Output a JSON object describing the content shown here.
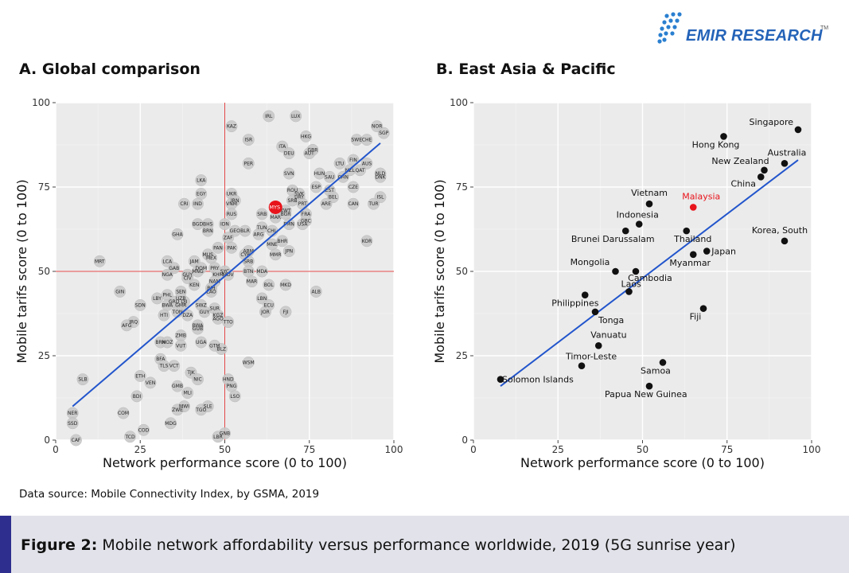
{
  "brand": {
    "name": "EMIR RESEARCH",
    "tm": "TM",
    "color": "#2463b8"
  },
  "panels": [
    {
      "title": "A. Global comparison"
    },
    {
      "title": "B. East Asia & Pacific"
    }
  ],
  "source": "Data source: Mobile Connectivity Index, by GSMA, 2019",
  "caption": {
    "label": "Figure 2:",
    "text": " Mobile network affordability versus performance worldwide, 2019 (5G sunrise year)"
  },
  "colors": {
    "trend": "#2255cc",
    "highlight": "#e8141b",
    "ref_lines": "#e04444",
    "panel_bg": "#ebebeb",
    "gray_point": "#c9c9c9"
  },
  "chart_data": [
    {
      "type": "scatter",
      "title": "A. Global comparison",
      "xlabel": "Network performance score (0 to 100)",
      "ylabel": "Mobile tarifs score (0 to 100)",
      "xlim": [
        0,
        100
      ],
      "ylim": [
        0,
        100
      ],
      "x_ticks": [
        0,
        25,
        50,
        75,
        100
      ],
      "y_ticks": [
        0,
        25,
        50,
        75,
        100
      ],
      "grid": true,
      "reference_lines": {
        "x": 50,
        "y": 50
      },
      "trend_line": [
        [
          5,
          10
        ],
        [
          96,
          88
        ]
      ],
      "highlight": {
        "label": "MYS",
        "x": 65,
        "y": 69
      },
      "points": [
        {
          "label": "LUX",
          "x": 71,
          "y": 96
        },
        {
          "label": "IRL",
          "x": 63,
          "y": 96
        },
        {
          "label": "KAZ",
          "x": 52,
          "y": 93
        },
        {
          "label": "NOR",
          "x": 95,
          "y": 93
        },
        {
          "label": "SGP",
          "x": 97,
          "y": 91
        },
        {
          "label": "HKG",
          "x": 74,
          "y": 90
        },
        {
          "label": "ISR",
          "x": 57,
          "y": 89
        },
        {
          "label": "SWE",
          "x": 89,
          "y": 89
        },
        {
          "label": "CHE",
          "x": 92,
          "y": 89
        },
        {
          "label": "ITA",
          "x": 67,
          "y": 87
        },
        {
          "label": "DEU",
          "x": 69,
          "y": 85
        },
        {
          "label": "GBR",
          "x": 76,
          "y": 86
        },
        {
          "label": "AUT",
          "x": 75,
          "y": 85
        },
        {
          "label": "FIN",
          "x": 88,
          "y": 83
        },
        {
          "label": "PER",
          "x": 57,
          "y": 82
        },
        {
          "label": "LTU",
          "x": 84,
          "y": 82
        },
        {
          "label": "AUS",
          "x": 92,
          "y": 82
        },
        {
          "label": "NZL",
          "x": 87,
          "y": 80
        },
        {
          "label": "QAT",
          "x": 90,
          "y": 80
        },
        {
          "label": "SVN",
          "x": 69,
          "y": 79
        },
        {
          "label": "HUN",
          "x": 78,
          "y": 79
        },
        {
          "label": "SAU",
          "x": 81,
          "y": 78
        },
        {
          "label": "CHN",
          "x": 85,
          "y": 78
        },
        {
          "label": "NLD",
          "x": 96,
          "y": 79
        },
        {
          "label": "DNK",
          "x": 96,
          "y": 78
        },
        {
          "label": "LKA",
          "x": 43,
          "y": 77
        },
        {
          "label": "ESP",
          "x": 77,
          "y": 75
        },
        {
          "label": "CZE",
          "x": 88,
          "y": 75
        },
        {
          "label": "ROU",
          "x": 70,
          "y": 74
        },
        {
          "label": "EST",
          "x": 81,
          "y": 74
        },
        {
          "label": "EGY",
          "x": 43,
          "y": 73
        },
        {
          "label": "UKR",
          "x": 52,
          "y": 73
        },
        {
          "label": "SVK",
          "x": 72,
          "y": 73
        },
        {
          "label": "BEL",
          "x": 82,
          "y": 72
        },
        {
          "label": "ISL",
          "x": 96,
          "y": 72
        },
        {
          "label": "IRN",
          "x": 53,
          "y": 71
        },
        {
          "label": "SRB",
          "x": 70,
          "y": 71
        },
        {
          "label": "URY",
          "x": 72,
          "y": 72
        },
        {
          "label": "CRI",
          "x": 38,
          "y": 70
        },
        {
          "label": "IND",
          "x": 42,
          "y": 70
        },
        {
          "label": "VNM",
          "x": 52,
          "y": 70
        },
        {
          "label": "PRT",
          "x": 73,
          "y": 70
        },
        {
          "label": "ARE",
          "x": 80,
          "y": 70
        },
        {
          "label": "CAN",
          "x": 88,
          "y": 70
        },
        {
          "label": "TUR",
          "x": 94,
          "y": 70
        },
        {
          "label": "MYS",
          "x": 65,
          "y": 69
        },
        {
          "label": "KWT",
          "x": 68,
          "y": 68
        },
        {
          "label": "BGR",
          "x": 68,
          "y": 67
        },
        {
          "label": "RUS",
          "x": 52,
          "y": 67
        },
        {
          "label": "FRA",
          "x": 74,
          "y": 67
        },
        {
          "label": "SRB",
          "x": 61,
          "y": 67
        },
        {
          "label": "MAR",
          "x": 65,
          "y": 66
        },
        {
          "label": "GRC",
          "x": 74,
          "y": 65
        },
        {
          "label": "BGD",
          "x": 42,
          "y": 64
        },
        {
          "label": "BHS",
          "x": 45,
          "y": 64
        },
        {
          "label": "IDN",
          "x": 50,
          "y": 64
        },
        {
          "label": "PMN",
          "x": 69,
          "y": 64
        },
        {
          "label": "USA",
          "x": 73,
          "y": 64
        },
        {
          "label": "BRN",
          "x": 45,
          "y": 62
        },
        {
          "label": "TUN",
          "x": 61,
          "y": 63
        },
        {
          "label": "GEO",
          "x": 53,
          "y": 62
        },
        {
          "label": "BLR",
          "x": 56,
          "y": 62
        },
        {
          "label": "ARG",
          "x": 60,
          "y": 61
        },
        {
          "label": "CHL",
          "x": 64,
          "y": 62
        },
        {
          "label": "GHA",
          "x": 36,
          "y": 61
        },
        {
          "label": "ZAF",
          "x": 51,
          "y": 60
        },
        {
          "label": "BHR",
          "x": 67,
          "y": 59
        },
        {
          "label": "KOR",
          "x": 92,
          "y": 59
        },
        {
          "label": "PAN",
          "x": 48,
          "y": 57
        },
        {
          "label": "PAK",
          "x": 52,
          "y": 57
        },
        {
          "label": "MNE",
          "x": 64,
          "y": 58
        },
        {
          "label": "MUS",
          "x": 45,
          "y": 55
        },
        {
          "label": "ARM",
          "x": 57,
          "y": 56
        },
        {
          "label": "CYP",
          "x": 56,
          "y": 55
        },
        {
          "label": "JPN",
          "x": 69,
          "y": 56
        },
        {
          "label": "MRT",
          "x": 13,
          "y": 53
        },
        {
          "label": "MEX",
          "x": 46,
          "y": 54
        },
        {
          "label": "MMR",
          "x": 65,
          "y": 55
        },
        {
          "label": "LCA",
          "x": 33,
          "y": 53
        },
        {
          "label": "JAM",
          "x": 41,
          "y": 53
        },
        {
          "label": "SRB",
          "x": 57,
          "y": 53
        },
        {
          "label": "GAB",
          "x": 35,
          "y": 51
        },
        {
          "label": "DOM",
          "x": 43,
          "y": 51
        },
        {
          "label": "PRY",
          "x": 47,
          "y": 51
        },
        {
          "label": "MNG",
          "x": 42,
          "y": 50
        },
        {
          "label": "SYC",
          "x": 50,
          "y": 50
        },
        {
          "label": "BTN",
          "x": 57,
          "y": 50
        },
        {
          "label": "MDA",
          "x": 61,
          "y": 50
        },
        {
          "label": "NGA",
          "x": 33,
          "y": 49
        },
        {
          "label": "GUY",
          "x": 39,
          "y": 49
        },
        {
          "label": "KHM",
          "x": 48,
          "y": 49
        },
        {
          "label": "MDV",
          "x": 51,
          "y": 49
        },
        {
          "label": "CIV",
          "x": 39,
          "y": 48
        },
        {
          "label": "NAM",
          "x": 47,
          "y": 47
        },
        {
          "label": "MAR",
          "x": 58,
          "y": 47
        },
        {
          "label": "KEN",
          "x": 41,
          "y": 46
        },
        {
          "label": "BOL",
          "x": 63,
          "y": 46
        },
        {
          "label": "MKD",
          "x": 68,
          "y": 46
        },
        {
          "label": "BIH",
          "x": 46,
          "y": 45
        },
        {
          "label": "GIN",
          "x": 19,
          "y": 44
        },
        {
          "label": "SEN",
          "x": 37,
          "y": 44
        },
        {
          "label": "LAO",
          "x": 46,
          "y": 44
        },
        {
          "label": "ALB",
          "x": 77,
          "y": 44
        },
        {
          "label": "PHL",
          "x": 33,
          "y": 43
        },
        {
          "label": "LBY",
          "x": 30,
          "y": 42
        },
        {
          "label": "UZB",
          "x": 37,
          "y": 42
        },
        {
          "label": "GRD",
          "x": 35,
          "y": 41
        },
        {
          "label": "LBN",
          "x": 61,
          "y": 42
        },
        {
          "label": "SDN",
          "x": 25,
          "y": 40
        },
        {
          "label": "DJI",
          "x": 38,
          "y": 41
        },
        {
          "label": "BWA",
          "x": 33,
          "y": 40
        },
        {
          "label": "SWZ",
          "x": 43,
          "y": 40
        },
        {
          "label": "ECU",
          "x": 63,
          "y": 40
        },
        {
          "label": "GMR",
          "x": 37,
          "y": 40
        },
        {
          "label": "SUR",
          "x": 47,
          "y": 39
        },
        {
          "label": "TON",
          "x": 36,
          "y": 38
        },
        {
          "label": "GUY",
          "x": 44,
          "y": 38
        },
        {
          "label": "JOR",
          "x": 62,
          "y": 38
        },
        {
          "label": "FJI",
          "x": 68,
          "y": 38
        },
        {
          "label": "HTI",
          "x": 32,
          "y": 37
        },
        {
          "label": "DZA",
          "x": 39,
          "y": 37
        },
        {
          "label": "KGZ",
          "x": 48,
          "y": 37
        },
        {
          "label": "IRQ",
          "x": 23,
          "y": 35
        },
        {
          "label": "AGO",
          "x": 48,
          "y": 36
        },
        {
          "label": "TTO",
          "x": 51,
          "y": 35
        },
        {
          "label": "AFG",
          "x": 21,
          "y": 34
        },
        {
          "label": "BWA",
          "x": 42,
          "y": 34
        },
        {
          "label": "GUB",
          "x": 42,
          "y": 33
        },
        {
          "label": "ZMB",
          "x": 37,
          "y": 31
        },
        {
          "label": "UGA",
          "x": 43,
          "y": 29
        },
        {
          "label": "BRN",
          "x": 31,
          "y": 29
        },
        {
          "label": "MOZ",
          "x": 33,
          "y": 29
        },
        {
          "label": "VUT",
          "x": 37,
          "y": 28
        },
        {
          "label": "GTM",
          "x": 47,
          "y": 28
        },
        {
          "label": "BLZ",
          "x": 49,
          "y": 27
        },
        {
          "label": "BFA",
          "x": 31,
          "y": 24
        },
        {
          "label": "WSM",
          "x": 57,
          "y": 23
        },
        {
          "label": "TLS",
          "x": 32,
          "y": 22
        },
        {
          "label": "VCT",
          "x": 35,
          "y": 22
        },
        {
          "label": "ETH",
          "x": 25,
          "y": 19
        },
        {
          "label": "TJK",
          "x": 40,
          "y": 20
        },
        {
          "label": "NIC",
          "x": 42,
          "y": 18
        },
        {
          "label": "SLB",
          "x": 8,
          "y": 18
        },
        {
          "label": "VEN",
          "x": 28,
          "y": 17
        },
        {
          "label": "HND",
          "x": 51,
          "y": 18
        },
        {
          "label": "PNG",
          "x": 52,
          "y": 16
        },
        {
          "label": "GMB",
          "x": 36,
          "y": 16
        },
        {
          "label": "MLI",
          "x": 39,
          "y": 14
        },
        {
          "label": "BDI",
          "x": 24,
          "y": 13
        },
        {
          "label": "LSO",
          "x": 53,
          "y": 13
        },
        {
          "label": "MWI",
          "x": 38,
          "y": 10
        },
        {
          "label": "ZWE",
          "x": 36,
          "y": 9
        },
        {
          "label": "TGO",
          "x": 43,
          "y": 9
        },
        {
          "label": "SLE",
          "x": 45,
          "y": 10
        },
        {
          "label": "NER",
          "x": 5,
          "y": 8
        },
        {
          "label": "COM",
          "x": 20,
          "y": 8
        },
        {
          "label": "SSD",
          "x": 5,
          "y": 5
        },
        {
          "label": "MDG",
          "x": 34,
          "y": 5
        },
        {
          "label": "COD",
          "x": 26,
          "y": 3
        },
        {
          "label": "TCD",
          "x": 22,
          "y": 1
        },
        {
          "label": "GNB",
          "x": 50,
          "y": 2
        },
        {
          "label": "LBR",
          "x": 48,
          "y": 1
        },
        {
          "label": "CAF",
          "x": 6,
          "y": 0
        }
      ]
    },
    {
      "type": "scatter",
      "title": "B. East Asia & Pacific",
      "xlabel": "Network performance score (0 to 100)",
      "ylabel": "Mobile tarifs score (0 to 100)",
      "xlim": [
        0,
        100
      ],
      "ylim": [
        0,
        100
      ],
      "x_ticks": [
        0,
        25,
        50,
        75,
        100
      ],
      "y_ticks": [
        0,
        25,
        50,
        75,
        100
      ],
      "grid": true,
      "trend_line": [
        [
          8,
          16
        ],
        [
          96,
          83
        ]
      ],
      "highlight": {
        "label": "Malaysia",
        "x": 65,
        "y": 69
      },
      "points": [
        {
          "label": "Singapore",
          "x": 96,
          "y": 92
        },
        {
          "label": "Hong Kong",
          "x": 74,
          "y": 90
        },
        {
          "label": "Australia",
          "x": 92,
          "y": 82
        },
        {
          "label": "New Zealand",
          "x": 86,
          "y": 80
        },
        {
          "label": "China",
          "x": 85,
          "y": 78
        },
        {
          "label": "Vietnam",
          "x": 52,
          "y": 70
        },
        {
          "label": "Malaysia",
          "x": 65,
          "y": 69
        },
        {
          "label": "Indonesia",
          "x": 49,
          "y": 64
        },
        {
          "label": "Brunei Darussalam",
          "x": 45,
          "y": 62
        },
        {
          "label": "Thailand",
          "x": 63,
          "y": 62
        },
        {
          "label": "Korea, South",
          "x": 92,
          "y": 59
        },
        {
          "label": "Japan",
          "x": 69,
          "y": 56
        },
        {
          "label": "Myanmar",
          "x": 65,
          "y": 55
        },
        {
          "label": "Mongolia",
          "x": 42,
          "y": 50
        },
        {
          "label": "Cambodia",
          "x": 48,
          "y": 50
        },
        {
          "label": "Laos",
          "x": 46,
          "y": 44
        },
        {
          "label": "Philippines",
          "x": 33,
          "y": 43
        },
        {
          "label": "Fiji",
          "x": 68,
          "y": 39
        },
        {
          "label": "Tonga",
          "x": 36,
          "y": 38
        },
        {
          "label": "Vanuatu",
          "x": 37,
          "y": 28
        },
        {
          "label": "Timor-Leste",
          "x": 32,
          "y": 22
        },
        {
          "label": "Samoa",
          "x": 56,
          "y": 23
        },
        {
          "label": "Solomon Islands",
          "x": 8,
          "y": 18
        },
        {
          "label": "Papua New Guinea",
          "x": 52,
          "y": 16
        }
      ]
    }
  ]
}
